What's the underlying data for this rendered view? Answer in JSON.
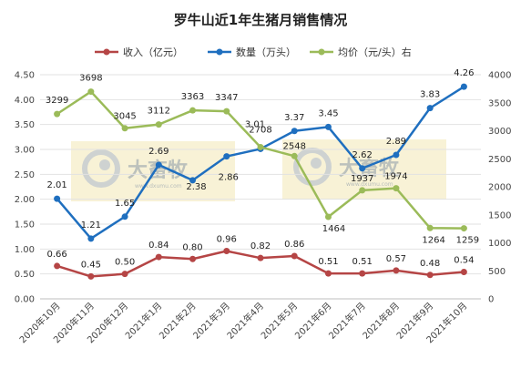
{
  "chart_data": {
    "type": "line",
    "title": "罗牛山近1年生猪月销售情况",
    "categories": [
      "2020年10月",
      "2020年11月",
      "2020年12月",
      "2021年1月",
      "2021年2月",
      "2021年3月",
      "2021年4月",
      "2021年5月",
      "2021年6月",
      "2021年7月",
      "2021年8月",
      "2021年9月",
      "2021年10月"
    ],
    "left_axis": {
      "min": 0,
      "max": 4.5,
      "ticks": [
        "0.00",
        "0.50",
        "1.00",
        "1.50",
        "2.00",
        "2.50",
        "3.00",
        "3.50",
        "4.00",
        "4.50"
      ]
    },
    "right_axis": {
      "min": 0,
      "max": 4000,
      "ticks": [
        "0",
        "500",
        "1000",
        "1500",
        "2000",
        "2500",
        "3000",
        "3500",
        "4000"
      ]
    },
    "grid": true,
    "legend_position": "top",
    "series": [
      {
        "name": "收入（亿元）",
        "axis": "left",
        "color": "#b54545",
        "values": [
          0.66,
          0.45,
          0.5,
          0.84,
          0.8,
          0.96,
          0.82,
          0.86,
          0.51,
          0.51,
          0.57,
          0.48,
          0.54
        ],
        "labels": [
          "0.66",
          "0.45",
          "0.50",
          "0.84",
          "0.80",
          "0.96",
          "0.82",
          "0.86",
          "0.51",
          "0.51",
          "0.57",
          "0.48",
          "0.54"
        ]
      },
      {
        "name": "数量（万头）",
        "axis": "left",
        "color": "#1f6fbf",
        "values": [
          2.01,
          1.21,
          1.65,
          2.69,
          2.38,
          2.86,
          3.01,
          3.37,
          3.45,
          2.62,
          2.89,
          3.83,
          4.26
        ],
        "labels": [
          "2.01",
          "1.21",
          "1.65",
          "2.69",
          "2.38",
          "2.86",
          "3.01",
          "3.37",
          "3.45",
          "2.62",
          "2.89",
          "3.83",
          "4.26"
        ]
      },
      {
        "name": "均价（元/头）右",
        "axis": "right",
        "color": "#9bbb59",
        "values": [
          3299,
          3698,
          3045,
          3112,
          3363,
          3347,
          2708,
          2548,
          1464,
          1937,
          1974,
          1264,
          1259
        ],
        "labels": [
          "3299",
          "3698",
          "3045",
          "3112",
          "3363",
          "3347",
          "2708",
          "2548",
          "1464",
          "1937",
          "1974",
          "1264",
          "1259"
        ]
      }
    ]
  },
  "watermarks": [
    {
      "text": "大畜牧",
      "subtext": "www.dxumu.com"
    },
    {
      "text": "大畜牧",
      "subtext": "www.dxumu.com"
    }
  ]
}
